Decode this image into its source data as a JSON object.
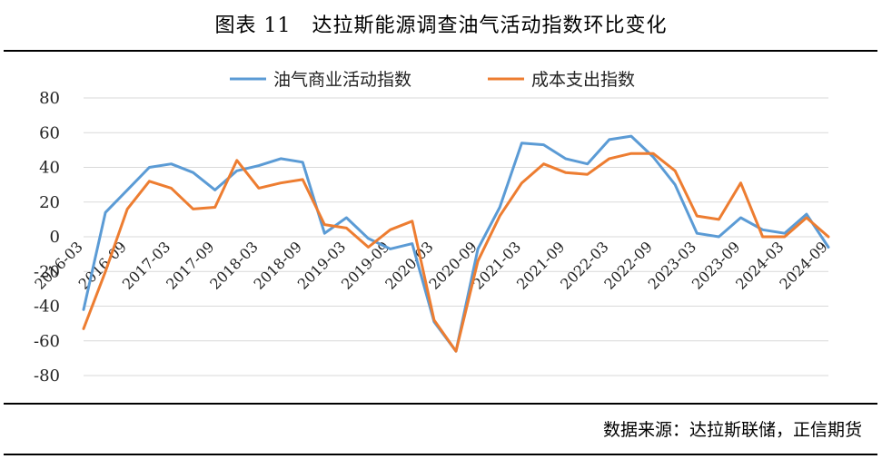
{
  "header": {
    "title": "图表 11　达拉斯能源调查油气活动指数环比变化"
  },
  "footer": {
    "source": "数据来源：达拉斯联储，正信期货"
  },
  "chart_data": {
    "type": "line",
    "title": "",
    "xlabel": "",
    "ylabel": "",
    "ylim": [
      -80,
      80
    ],
    "yticks": [
      -80,
      -60,
      -40,
      -20,
      0,
      20,
      40,
      60,
      80
    ],
    "grid": "horizontal",
    "legend": "top-center",
    "x": [
      "2016-03",
      "2016-06",
      "2016-09",
      "2016-12",
      "2017-03",
      "2017-06",
      "2017-09",
      "2017-12",
      "2018-03",
      "2018-06",
      "2018-09",
      "2018-12",
      "2019-03",
      "2019-06",
      "2019-09",
      "2019-12",
      "2020-03",
      "2020-06",
      "2020-09",
      "2020-12",
      "2021-03",
      "2021-06",
      "2021-09",
      "2021-12",
      "2022-03",
      "2022-06",
      "2022-09",
      "2022-12",
      "2023-03",
      "2023-06",
      "2023-09",
      "2023-12",
      "2024-03",
      "2024-06",
      "2024-09"
    ],
    "tick_labels": [
      "2016-03",
      "2016-09",
      "2017-03",
      "2017-09",
      "2018-03",
      "2018-09",
      "2019-03",
      "2019-09",
      "2020-03",
      "2020-09",
      "2021-03",
      "2021-09",
      "2022-03",
      "2022-09",
      "2023-03",
      "2023-09",
      "2024-03",
      "2024-09"
    ],
    "series": [
      {
        "name": "油气商业活动指数",
        "color": "#5B9BD5",
        "values": [
          -42,
          14,
          27,
          40,
          42,
          37,
          27,
          38,
          41,
          45,
          43,
          2,
          11,
          -1,
          -7,
          -4,
          -49,
          -66,
          -7,
          17,
          54,
          53,
          45,
          42,
          56,
          58,
          46,
          30,
          2,
          0,
          11,
          4,
          2,
          13,
          -6
        ]
      },
      {
        "name": "成本支出指数",
        "color": "#ED7D31",
        "values": [
          -53,
          -20,
          16,
          32,
          28,
          16,
          17,
          44,
          28,
          31,
          33,
          7,
          5,
          -6,
          4,
          9,
          -48,
          -66,
          -14,
          12,
          31,
          42,
          37,
          36,
          45,
          48,
          48,
          38,
          12,
          10,
          31,
          0,
          0,
          11,
          0
        ]
      }
    ]
  }
}
